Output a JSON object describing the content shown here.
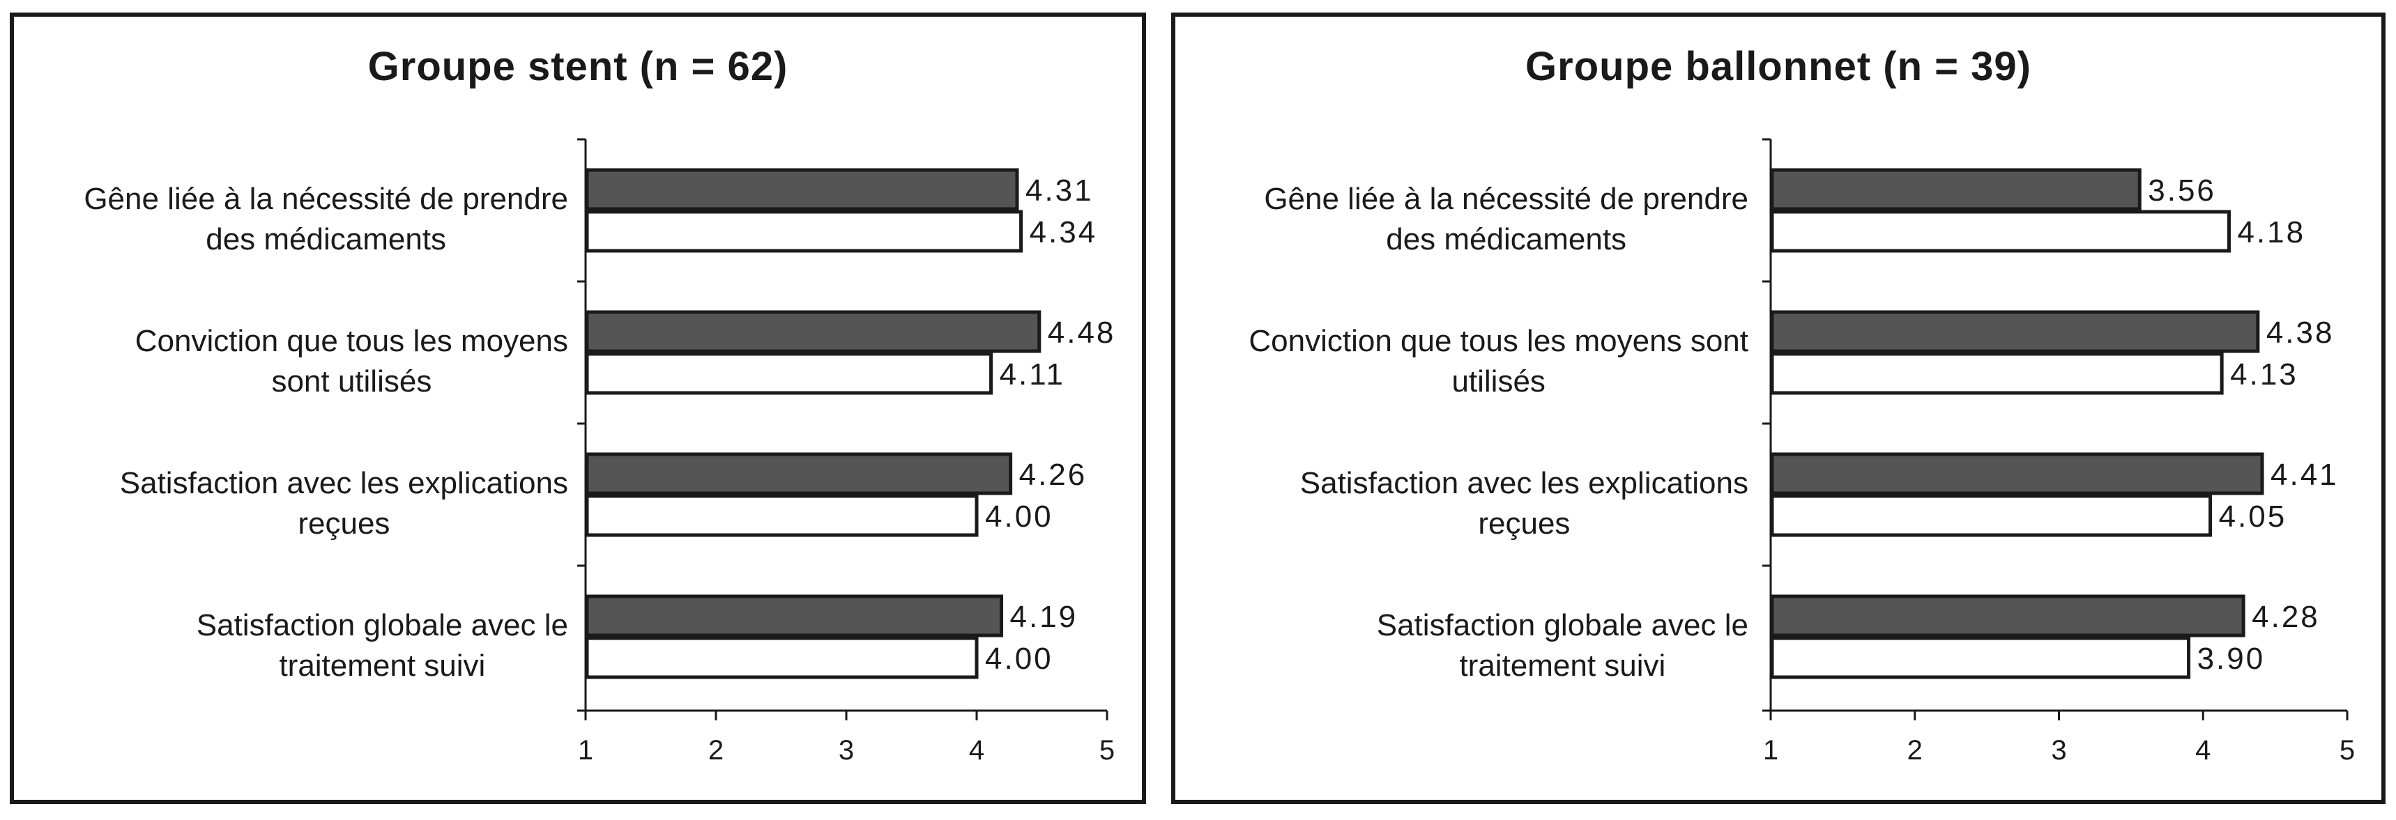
{
  "colors": {
    "dark_bar": "#555555",
    "light_bar": "#ffffff",
    "stroke": "#1a1a1a"
  },
  "chart_data": [
    {
      "type": "bar",
      "orientation": "horizontal",
      "title": "Groupe stent (n = 62)",
      "categories": [
        [
          "Gêne liée à la nécessité de prendre",
          "des médicaments"
        ],
        [
          "Conviction que tous les moyens",
          "sont  utilisés"
        ],
        [
          "Satisfaction avec les explications",
          "reçues"
        ],
        [
          "Satisfaction globale avec le",
          "traitement  suivi"
        ]
      ],
      "series": [
        {
          "color": "#555555",
          "values": [
            4.31,
            4.48,
            4.26,
            4.19
          ],
          "labels": [
            "4.31",
            "4.48",
            "4.26",
            "4.19"
          ]
        },
        {
          "color": "#ffffff",
          "values": [
            4.34,
            4.11,
            4.0,
            4.0
          ],
          "labels": [
            "4.34",
            "4.11",
            "4.00",
            "4.00"
          ]
        }
      ],
      "xlim": [
        1,
        5
      ],
      "xticks": [
        "1",
        "2",
        "3",
        "4",
        "5"
      ],
      "grid": false,
      "legend": "none"
    },
    {
      "type": "bar",
      "orientation": "horizontal",
      "title": "Groupe ballonnet (n = 39)",
      "categories": [
        [
          "Gêne liée à la nécessité de prendre",
          "des médicaments"
        ],
        [
          "Conviction que tous les moyens sont",
          "utilisés"
        ],
        [
          "Satisfaction avec les explications",
          "reçues"
        ],
        [
          "Satisfaction globale avec le",
          "traitement suivi"
        ]
      ],
      "series": [
        {
          "color": "#555555",
          "values": [
            3.56,
            4.38,
            4.41,
            4.28
          ],
          "labels": [
            "3.56",
            "4.38",
            "4.41",
            "4.28"
          ]
        },
        {
          "color": "#ffffff",
          "values": [
            4.18,
            4.13,
            4.05,
            3.9
          ],
          "labels": [
            "4.18",
            "4.13",
            "4.05",
            "3.90"
          ]
        }
      ],
      "xlim": [
        1,
        5
      ],
      "xticks": [
        "1",
        "2",
        "3",
        "4",
        "5"
      ],
      "grid": false,
      "legend": "none"
    }
  ]
}
